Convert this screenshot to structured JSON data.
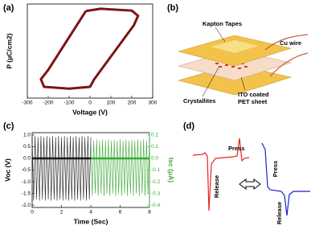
{
  "panel_labels": [
    "(a)",
    "(b)",
    "(c)",
    "(d)"
  ],
  "chart_data": [
    {
      "type": "line",
      "x_label": "Voltage (V)",
      "y_label": "P (μC/cm2)",
      "xlim": [
        -300,
        300
      ],
      "xticks": [
        -300,
        -200,
        -100,
        0,
        100,
        200,
        300
      ],
      "ylim": [
        -1,
        1
      ],
      "series": [
        {
          "color": "#7b1416",
          "x": [
            -20,
            50,
            200,
            230,
            210,
            20,
            0,
            -100,
            -220,
            -235,
            -200,
            -20
          ],
          "values": [
            0.85,
            0.9,
            0.86,
            0.75,
            0.55,
            -0.6,
            -0.76,
            -0.8,
            -0.76,
            -0.6,
            -0.4,
            0.85
          ]
        }
      ]
    },
    {
      "type": "line",
      "x_label": "Time (Sec)",
      "y_label": "Voc (V)",
      "y2_label": "Isc (μA)",
      "xlim": [
        0,
        8
      ],
      "xticks": [
        0,
        2,
        4,
        6,
        8
      ],
      "ylim": [
        -2.1,
        1.1
      ],
      "yticks": [
        {
          "value": -2,
          "label": "-2.0"
        },
        -1.5,
        {
          "value": -1,
          "label": "-1.0"
        },
        -0.5,
        {
          "value": 0,
          "label": "0.0"
        },
        0.5,
        {
          "value": 1,
          "label": "1.0"
        }
      ],
      "y2lim": [
        -0.42,
        0.22
      ],
      "y2ticks": [
        -0.4,
        -0.3,
        -0.2,
        -0.1,
        {
          "value": 0,
          "label": "0.0"
        },
        0.1,
        0.2
      ],
      "baseline": true,
      "series": [
        {
          "color": "#1a1a1a",
          "x": [
            0,
            0.1,
            0.2,
            0.3,
            0.4,
            0.5,
            0.6,
            0.7,
            0.8,
            0.9,
            1,
            1.1,
            1.2,
            1.3,
            1.4,
            1.5,
            1.6,
            1.7,
            1.8,
            1.9,
            2,
            2.1,
            2.2,
            2.3,
            2.4,
            2.5,
            2.6,
            2.7,
            2.8,
            2.9,
            3,
            3.1,
            3.2,
            3.3,
            3.4,
            3.5,
            3.6,
            3.7,
            3.8,
            3.9,
            4
          ],
          "values": [
            0.9,
            -1.8,
            0.95,
            -1.75,
            0.9,
            -1.8,
            0.95,
            -1.75,
            0.9,
            -1.8,
            0.95,
            -1.75,
            0.9,
            -1.8,
            0.95,
            -1.75,
            0.9,
            -1.8,
            0.95,
            -1.75,
            0.9,
            -1.8,
            0.95,
            -1.75,
            0.9,
            -1.8,
            0.95,
            -1.75,
            0.9,
            -1.8,
            0.95,
            -1.75,
            0.9,
            -1.8,
            0.95,
            -1.75,
            0.9,
            -1.8,
            0.95,
            -1.75,
            0.9
          ]
        },
        {
          "color": "#3aa935",
          "axis": "y2",
          "x": [
            4,
            4.1,
            4.2,
            4.3,
            4.4,
            4.5,
            4.6,
            4.7,
            4.8,
            4.9,
            5,
            5.1,
            5.2,
            5.3,
            5.4,
            5.5,
            5.6,
            5.7,
            5.8,
            5.9,
            6,
            6.1,
            6.2,
            6.3,
            6.4,
            6.5,
            6.6,
            6.7,
            6.8,
            6.9,
            7,
            7.1,
            7.2,
            7.3,
            7.4,
            7.5,
            7.6,
            7.7,
            7.8,
            7.9,
            8
          ],
          "values": [
            0.16,
            -0.32,
            0.15,
            -0.3,
            0.16,
            -0.32,
            0.15,
            -0.3,
            0.16,
            -0.32,
            0.15,
            -0.3,
            0.16,
            -0.32,
            0.15,
            -0.3,
            0.16,
            -0.32,
            0.15,
            -0.3,
            0.16,
            -0.32,
            0.15,
            -0.3,
            0.16,
            -0.32,
            0.15,
            -0.3,
            0.16,
            -0.32,
            0.15,
            -0.3,
            0.16,
            -0.32,
            0.15,
            -0.3,
            0.16,
            -0.32,
            0.15,
            -0.3,
            0.16
          ]
        }
      ]
    }
  ],
  "diagram_b": {
    "kapton": "Kapton Tapes",
    "cu_wire": "Cu wire",
    "ito_line1": "ITO coated",
    "ito_line2": "PET sheet",
    "crystallites": "Crystallites"
  },
  "diagram_d": {
    "press_red": "Press",
    "release_red": "Release",
    "press_blue": "Press",
    "release_blue": "Release"
  }
}
